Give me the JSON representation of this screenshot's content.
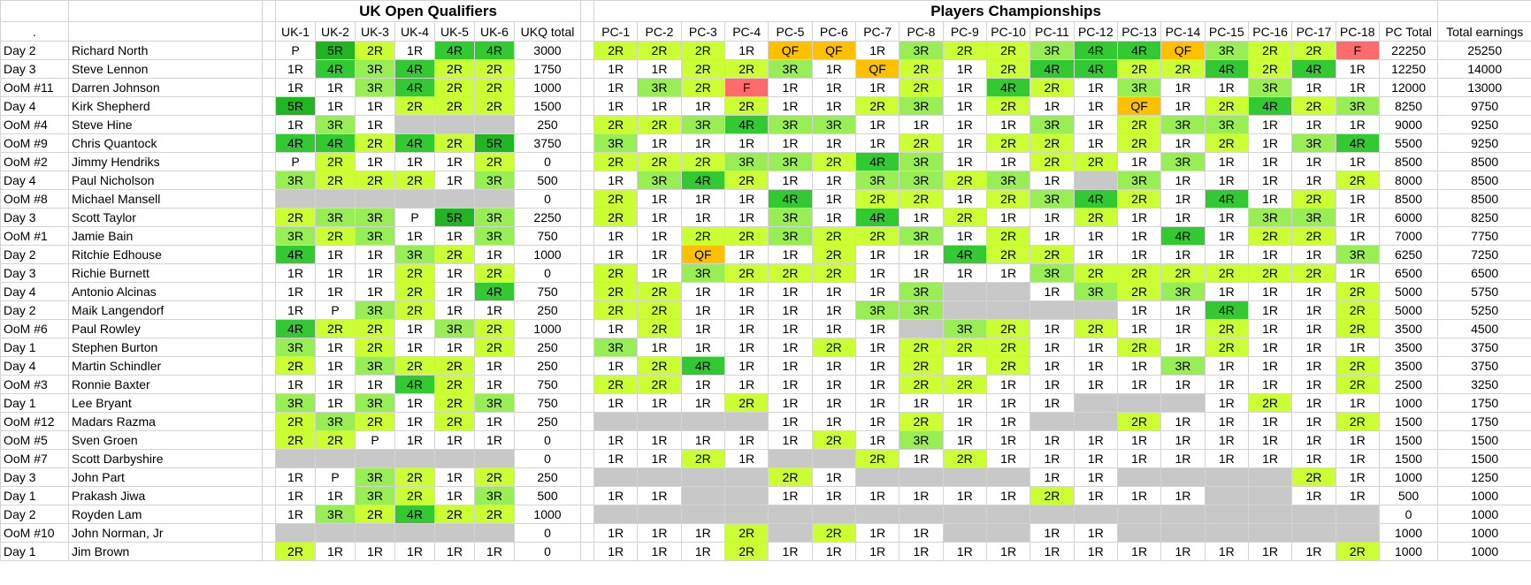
{
  "header": {
    "dot": ".",
    "uk_title": "UK Open Qualifiers",
    "pc_title": "Players Championships",
    "columns": [
      "UK-1",
      "UK-2",
      "UK-3",
      "UK-4",
      "UK-5",
      "UK-6",
      "UKQ total",
      "PC-1",
      "PC-2",
      "PC-3",
      "PC-4",
      "PC-5",
      "PC-6",
      "PC-7",
      "PC-8",
      "PC-9",
      "PC-10",
      "PC-11",
      "PC-12",
      "PC-13",
      "PC-14",
      "PC-15",
      "PC-16",
      "PC-17",
      "PC-18",
      "PC Total",
      "Total earnings"
    ]
  },
  "rows": [
    [
      "Day 2",
      "Richard North",
      "P",
      "5R",
      "2R",
      "1R",
      "4R",
      "4R",
      3000,
      "2R",
      "2R",
      "2R",
      "1R",
      "QF",
      "QF",
      "1R",
      "3R",
      "2R",
      "2R",
      "3R",
      "4R",
      "4R",
      "QF",
      "3R",
      "2R",
      "2R",
      "F",
      22250,
      25250
    ],
    [
      "Day 3",
      "Steve Lennon",
      "1R",
      "4R",
      "3R",
      "4R",
      "2R",
      "2R",
      1750,
      "1R",
      "1R",
      "2R",
      "2R",
      "3R",
      "1R",
      "QF",
      "2R",
      "1R",
      "2R",
      "4R",
      "4R",
      "2R",
      "2R",
      "4R",
      "2R",
      "4R",
      "1R",
      12250,
      14000
    ],
    [
      "OoM #11",
      "Darren Johnson",
      "1R",
      "1R",
      "3R",
      "4R",
      "2R",
      "2R",
      1000,
      "1R",
      "3R",
      "2R",
      "F",
      "1R",
      "1R",
      "1R",
      "2R",
      "1R",
      "4R",
      "2R",
      "1R",
      "3R",
      "1R",
      "1R",
      "3R",
      "1R",
      "1R",
      12000,
      13000
    ],
    [
      "Day 4",
      "Kirk Shepherd",
      "5R",
      "1R",
      "1R",
      "2R",
      "2R",
      "2R",
      1500,
      "1R",
      "1R",
      "1R",
      "2R",
      "1R",
      "1R",
      "2R",
      "3R",
      "1R",
      "2R",
      "1R",
      "1R",
      "QF",
      "1R",
      "2R",
      "4R",
      "2R",
      "3R",
      8250,
      9750
    ],
    [
      "OoM #4",
      "Steve Hine",
      "1R",
      "3R",
      "1R",
      null,
      null,
      null,
      250,
      "2R",
      "2R",
      "3R",
      "4R",
      "3R",
      "3R",
      "1R",
      "1R",
      "1R",
      "1R",
      "3R",
      "1R",
      "2R",
      "3R",
      "3R",
      "1R",
      "1R",
      "1R",
      9000,
      9250
    ],
    [
      "OoM #9",
      "Chris Quantock",
      "4R",
      "4R",
      "2R",
      "4R",
      "2R",
      "5R",
      3750,
      "3R",
      "1R",
      "1R",
      "1R",
      "1R",
      "1R",
      "1R",
      "2R",
      "1R",
      "2R",
      "2R",
      "1R",
      "2R",
      "1R",
      "2R",
      "1R",
      "3R",
      "4R",
      5500,
      9250
    ],
    [
      "OoM #2",
      "Jimmy Hendriks",
      "P",
      "2R",
      "1R",
      "1R",
      "1R",
      "2R",
      0,
      "2R",
      "2R",
      "2R",
      "3R",
      "3R",
      "2R",
      "4R",
      "3R",
      "1R",
      "1R",
      "2R",
      "2R",
      "1R",
      "3R",
      "1R",
      "1R",
      "1R",
      "1R",
      8500,
      8500
    ],
    [
      "Day 4",
      "Paul Nicholson",
      "3R",
      "2R",
      "2R",
      "2R",
      "1R",
      "3R",
      500,
      "1R",
      "3R",
      "4R",
      "2R",
      "1R",
      "1R",
      "3R",
      "3R",
      "2R",
      "3R",
      "1R",
      null,
      "3R",
      "1R",
      "1R",
      "1R",
      "1R",
      "2R",
      8000,
      8500
    ],
    [
      "OoM #8",
      "Michael Mansell",
      null,
      null,
      null,
      null,
      null,
      null,
      0,
      "2R",
      "1R",
      "1R",
      "1R",
      "4R",
      "1R",
      "2R",
      "2R",
      "1R",
      "2R",
      "3R",
      "4R",
      "2R",
      "1R",
      "4R",
      "1R",
      "2R",
      "1R",
      8500,
      8500
    ],
    [
      "Day 3",
      "Scott Taylor",
      "2R",
      "3R",
      "3R",
      "P",
      "5R",
      "3R",
      2250,
      "2R",
      "1R",
      "1R",
      "1R",
      "3R",
      "1R",
      "4R",
      "1R",
      "2R",
      "1R",
      "1R",
      "2R",
      "1R",
      "1R",
      "1R",
      "3R",
      "3R",
      "1R",
      6000,
      8250
    ],
    [
      "OoM #1",
      "Jamie Bain",
      "3R",
      "2R",
      "3R",
      "1R",
      "1R",
      "3R",
      750,
      "1R",
      "1R",
      "2R",
      "2R",
      "3R",
      "2R",
      "2R",
      "3R",
      "1R",
      "2R",
      "1R",
      "1R",
      "1R",
      "4R",
      "1R",
      "2R",
      "2R",
      "1R",
      7000,
      7750
    ],
    [
      "Day 2",
      "Ritchie Edhouse",
      "4R",
      "1R",
      "1R",
      "3R",
      "2R",
      "1R",
      1000,
      "1R",
      "1R",
      "QF",
      "1R",
      "1R",
      "2R",
      "1R",
      "1R",
      "4R",
      "2R",
      "2R",
      "1R",
      "1R",
      "1R",
      "1R",
      "1R",
      "1R",
      "3R",
      6250,
      7250
    ],
    [
      "Day 3",
      "Richie Burnett",
      "1R",
      "1R",
      "1R",
      "2R",
      "1R",
      "2R",
      0,
      "2R",
      "1R",
      "3R",
      "2R",
      "2R",
      "2R",
      "1R",
      "1R",
      "1R",
      "1R",
      "3R",
      "2R",
      "2R",
      "2R",
      "2R",
      "2R",
      "2R",
      "1R",
      6500,
      6500
    ],
    [
      "Day 4",
      "Antonio Alcinas",
      "1R",
      "1R",
      "1R",
      "2R",
      "1R",
      "4R",
      750,
      "2R",
      "2R",
      "1R",
      "1R",
      "1R",
      "1R",
      "1R",
      "3R",
      null,
      null,
      "1R",
      "3R",
      "2R",
      "3R",
      "1R",
      "1R",
      "1R",
      "2R",
      5000,
      5750
    ],
    [
      "Day 2",
      "Maik Langendorf",
      "1R",
      "P",
      "3R",
      "2R",
      "1R",
      "1R",
      250,
      "2R",
      "2R",
      "1R",
      "1R",
      "1R",
      "1R",
      "3R",
      "3R",
      null,
      null,
      null,
      null,
      "1R",
      "1R",
      "4R",
      "1R",
      "1R",
      "2R",
      5000,
      5250
    ],
    [
      "OoM #6",
      "Paul Rowley",
      "4R",
      "2R",
      "2R",
      "1R",
      "3R",
      "2R",
      1000,
      "1R",
      "2R",
      "1R",
      "1R",
      "1R",
      "1R",
      "1R",
      null,
      "3R",
      "2R",
      "1R",
      "2R",
      "1R",
      "1R",
      "2R",
      "1R",
      "1R",
      "2R",
      3500,
      4500
    ],
    [
      "Day 1",
      "Stephen Burton",
      "3R",
      "1R",
      "2R",
      "1R",
      "1R",
      "2R",
      250,
      "3R",
      "1R",
      "1R",
      "1R",
      "1R",
      "2R",
      "1R",
      "2R",
      "2R",
      "2R",
      "1R",
      "1R",
      "2R",
      "1R",
      "2R",
      "1R",
      "1R",
      "1R",
      3500,
      3750
    ],
    [
      "Day 4",
      "Martin Schindler",
      "2R",
      "1R",
      "3R",
      "2R",
      "2R",
      "1R",
      250,
      "1R",
      "2R",
      "4R",
      "1R",
      "1R",
      "1R",
      "1R",
      "2R",
      "1R",
      "2R",
      "1R",
      "1R",
      "1R",
      "3R",
      "1R",
      "1R",
      "1R",
      "2R",
      3500,
      3750
    ],
    [
      "OoM #3",
      "Ronnie Baxter",
      "1R",
      "1R",
      "1R",
      "4R",
      "2R",
      "1R",
      750,
      "2R",
      "2R",
      "1R",
      "1R",
      "1R",
      "1R",
      "1R",
      "2R",
      "2R",
      "1R",
      "1R",
      "1R",
      "1R",
      "1R",
      "1R",
      "1R",
      "1R",
      "2R",
      2500,
      3250
    ],
    [
      "Day 1",
      "Lee Bryant",
      "3R",
      "1R",
      "3R",
      "1R",
      "2R",
      "3R",
      750,
      "1R",
      "1R",
      "1R",
      "2R",
      "1R",
      "1R",
      "1R",
      "1R",
      "1R",
      "1R",
      "1R",
      null,
      null,
      null,
      "1R",
      "2R",
      "1R",
      "1R",
      1000,
      1750
    ],
    [
      "OoM #12",
      "Madars Razma",
      "2R",
      "3R",
      "2R",
      "1R",
      "2R",
      "1R",
      250,
      null,
      null,
      null,
      null,
      "1R",
      "1R",
      "1R",
      "2R",
      "1R",
      "1R",
      null,
      null,
      "2R",
      "1R",
      "1R",
      "1R",
      "1R",
      "2R",
      1500,
      1750
    ],
    [
      "OoM #5",
      "Sven Groen",
      "2R",
      "2R",
      "P",
      "1R",
      "1R",
      "1R",
      0,
      "1R",
      "1R",
      "1R",
      "1R",
      "1R",
      "2R",
      "1R",
      "3R",
      "1R",
      "1R",
      "1R",
      "1R",
      "1R",
      "1R",
      "1R",
      "1R",
      "1R",
      "1R",
      1500,
      1500
    ],
    [
      "OoM #7",
      "Scott Darbyshire",
      null,
      null,
      null,
      null,
      null,
      null,
      0,
      "1R",
      "1R",
      "2R",
      "1R",
      null,
      null,
      "2R",
      "1R",
      "2R",
      "1R",
      "1R",
      "1R",
      "1R",
      "1R",
      "1R",
      "1R",
      "1R",
      "1R",
      1500,
      1500
    ],
    [
      "Day 3",
      "John Part",
      "1R",
      "P",
      "3R",
      "2R",
      "1R",
      "2R",
      250,
      null,
      null,
      null,
      null,
      "2R",
      "1R",
      null,
      null,
      null,
      null,
      "1R",
      "1R",
      null,
      null,
      null,
      null,
      "2R",
      "1R",
      1000,
      1250
    ],
    [
      "Day 1",
      "Prakash Jiwa",
      "1R",
      "1R",
      "3R",
      "2R",
      "1R",
      "3R",
      500,
      "1R",
      "1R",
      null,
      null,
      "1R",
      "1R",
      "1R",
      "1R",
      "1R",
      "1R",
      "2R",
      "1R",
      "1R",
      "1R",
      null,
      null,
      "1R",
      "1R",
      500,
      1000
    ],
    [
      "Day 2",
      "Royden Lam",
      "1R",
      "3R",
      "2R",
      "4R",
      "2R",
      "2R",
      1000,
      null,
      null,
      null,
      null,
      null,
      null,
      null,
      null,
      null,
      null,
      null,
      null,
      null,
      null,
      null,
      null,
      null,
      null,
      0,
      1000
    ],
    [
      "OoM #10",
      "John Norman, Jr",
      null,
      null,
      null,
      null,
      null,
      null,
      0,
      "1R",
      "1R",
      "1R",
      "2R",
      null,
      "2R",
      "1R",
      "1R",
      null,
      null,
      "1R",
      "1R",
      null,
      null,
      null,
      null,
      null,
      null,
      1000,
      1000
    ],
    [
      "Day 1",
      "Jim Brown",
      "2R",
      "1R",
      "1R",
      "1R",
      "1R",
      "1R",
      0,
      "1R",
      "1R",
      "1R",
      "2R",
      "1R",
      "1R",
      "1R",
      "1R",
      "1R",
      "1R",
      "1R",
      "1R",
      "1R",
      "1R",
      "1R",
      "1R",
      "1R",
      "2R",
      1000,
      1000
    ]
  ]
}
